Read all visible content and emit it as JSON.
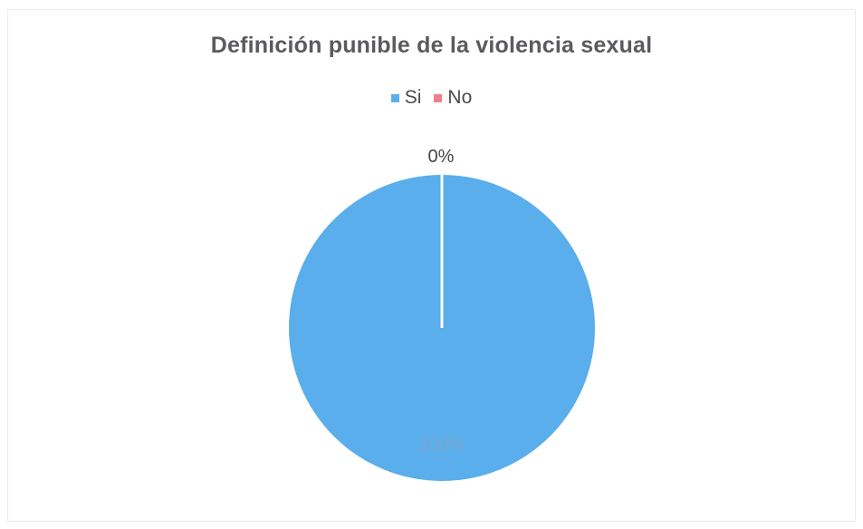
{
  "chart_data": {
    "type": "pie",
    "title": "Definición punible de la violencia sexual",
    "categories": [
      "Si",
      "No"
    ],
    "values": [
      100,
      0
    ],
    "data_labels": [
      "100%",
      "0%"
    ],
    "colors": [
      "#5aaeeb",
      "#f07f8c"
    ],
    "legend_position": "top"
  }
}
